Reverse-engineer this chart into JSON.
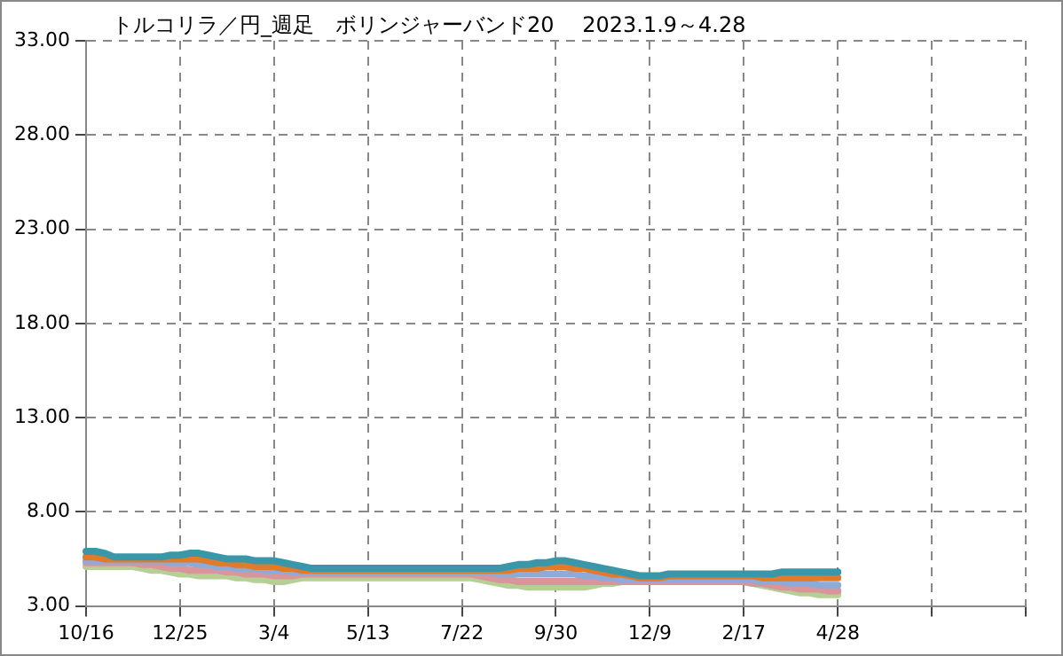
{
  "chart_data": {
    "type": "line",
    "title": "トルコリラ／円_週足　ボリンジャーバンド20　 2023.1.9～4.28",
    "categories": [
      "10/16",
      null,
      null,
      null,
      null,
      null,
      null,
      null,
      null,
      null,
      "12/25",
      null,
      null,
      null,
      null,
      null,
      null,
      null,
      null,
      null,
      "3/4",
      null,
      null,
      null,
      null,
      null,
      null,
      null,
      null,
      null,
      "5/13",
      null,
      null,
      null,
      null,
      null,
      null,
      null,
      null,
      null,
      "7/22",
      null,
      null,
      null,
      null,
      null,
      null,
      null,
      null,
      null,
      "9/30",
      null,
      null,
      null,
      null,
      null,
      null,
      null,
      null,
      null,
      "12/9",
      null,
      null,
      null,
      null,
      null,
      null,
      null,
      null,
      null,
      "2/17",
      null,
      null,
      null,
      null,
      null,
      null,
      null,
      null,
      null,
      "4/28",
      null,
      null,
      null,
      null,
      null,
      null,
      null,
      null,
      null,
      null,
      null,
      null,
      null,
      null,
      null,
      null,
      null,
      null,
      null,
      null
    ],
    "series": [
      {
        "color": "#3a97a9",
        "values": [
          5.9,
          5.9,
          5.8,
          5.6,
          5.6,
          5.6,
          5.6,
          5.6,
          5.6,
          5.7,
          5.7,
          5.8,
          5.8,
          5.7,
          5.6,
          5.5,
          5.5,
          5.5,
          5.4,
          5.4,
          5.4,
          5.3,
          5.2,
          5.1,
          5.0,
          5.0,
          5.0,
          5.0,
          5.0,
          5.0,
          5.0,
          5.0,
          5.0,
          5.0,
          5.0,
          5.0,
          5.0,
          5.0,
          5.0,
          5.0,
          5.0,
          5.0,
          5.0,
          5.0,
          5.0,
          5.1,
          5.2,
          5.2,
          5.3,
          5.3,
          5.4,
          5.4,
          5.3,
          5.2,
          5.1,
          5.0,
          4.9,
          4.8,
          4.7,
          4.6,
          4.6,
          4.6,
          4.7,
          4.7,
          4.7,
          4.7,
          4.7,
          4.7,
          4.7,
          4.7,
          4.7,
          4.7,
          4.7,
          4.7,
          4.8,
          4.8,
          4.8,
          4.8,
          4.8,
          4.8,
          4.8,
          null,
          null,
          null,
          null,
          null,
          null,
          null,
          null,
          null,
          null,
          null,
          null,
          null,
          null,
          null,
          null,
          null,
          null,
          null,
          null
        ]
      },
      {
        "color": "#e07b2a",
        "values": [
          5.6,
          5.6,
          5.5,
          5.5,
          5.5,
          5.5,
          5.5,
          5.5,
          5.5,
          5.5,
          5.5,
          5.5,
          5.5,
          5.4,
          5.3,
          5.3,
          5.2,
          5.2,
          5.1,
          5.1,
          5.1,
          5.0,
          5.0,
          4.9,
          4.9,
          4.9,
          4.9,
          4.9,
          4.9,
          4.9,
          4.9,
          4.9,
          4.9,
          4.9,
          4.9,
          4.9,
          4.9,
          4.9,
          4.9,
          4.9,
          4.9,
          4.9,
          4.9,
          4.9,
          4.9,
          4.9,
          5.0,
          5.0,
          5.0,
          5.1,
          5.1,
          5.1,
          5.0,
          5.0,
          4.9,
          4.8,
          4.7,
          4.7,
          4.6,
          4.5,
          4.5,
          4.5,
          4.6,
          4.6,
          4.6,
          4.6,
          4.6,
          4.6,
          4.6,
          4.6,
          4.6,
          4.6,
          4.5,
          4.5,
          4.5,
          4.5,
          4.5,
          4.5,
          4.5,
          4.5,
          4.5,
          null,
          null,
          null,
          null,
          null,
          null,
          null,
          null,
          null,
          null,
          null,
          null,
          null,
          null,
          null,
          null,
          null,
          null,
          null,
          null
        ]
      },
      {
        "color": "#8eaad8",
        "values": [
          5.4,
          5.4,
          5.4,
          5.4,
          5.4,
          5.4,
          5.4,
          5.4,
          5.4,
          5.3,
          5.3,
          5.3,
          5.2,
          5.2,
          5.1,
          5.1,
          5.0,
          5.0,
          5.0,
          4.9,
          4.9,
          4.9,
          4.8,
          4.8,
          4.8,
          4.8,
          4.8,
          4.8,
          4.8,
          4.8,
          4.8,
          4.8,
          4.8,
          4.8,
          4.8,
          4.8,
          4.8,
          4.8,
          4.8,
          4.8,
          4.8,
          4.8,
          4.8,
          4.8,
          4.7,
          4.7,
          4.7,
          4.7,
          4.7,
          4.7,
          4.7,
          4.7,
          4.7,
          4.6,
          4.6,
          4.5,
          4.5,
          4.4,
          4.4,
          4.4,
          4.4,
          4.4,
          4.4,
          4.4,
          4.4,
          4.4,
          4.4,
          4.4,
          4.4,
          4.4,
          4.4,
          4.4,
          4.3,
          4.3,
          4.3,
          4.2,
          4.2,
          4.2,
          4.1,
          4.1,
          4.1,
          null,
          null,
          null,
          null,
          null,
          null,
          null,
          null,
          null,
          null,
          null,
          null,
          null,
          null,
          null,
          null,
          null,
          null,
          null,
          null
        ]
      },
      {
        "color": "#d9959a",
        "values": [
          5.3,
          5.3,
          5.3,
          5.3,
          5.3,
          5.3,
          5.2,
          5.2,
          5.1,
          5.0,
          5.0,
          4.9,
          4.9,
          4.9,
          4.9,
          4.8,
          4.8,
          4.7,
          4.7,
          4.7,
          4.6,
          4.6,
          4.6,
          4.7,
          4.7,
          4.7,
          4.7,
          4.7,
          4.7,
          4.7,
          4.7,
          4.7,
          4.7,
          4.7,
          4.7,
          4.7,
          4.7,
          4.7,
          4.7,
          4.7,
          4.7,
          4.7,
          4.6,
          4.5,
          4.4,
          4.4,
          4.3,
          4.3,
          4.3,
          4.3,
          4.3,
          4.3,
          4.3,
          4.3,
          4.3,
          4.3,
          4.3,
          4.3,
          4.3,
          4.3,
          4.3,
          4.3,
          4.3,
          4.3,
          4.3,
          4.3,
          4.3,
          4.3,
          4.3,
          4.3,
          4.3,
          4.2,
          4.2,
          4.1,
          4.0,
          4.0,
          3.9,
          3.9,
          3.9,
          3.8,
          3.8,
          null,
          null,
          null,
          null,
          null,
          null,
          null,
          null,
          null,
          null,
          null,
          null,
          null,
          null,
          null,
          null,
          null,
          null,
          null,
          null
        ]
      },
      {
        "color": "#b5cf95",
        "values": [
          5.1,
          5.1,
          5.1,
          5.1,
          5.1,
          5.1,
          5.0,
          4.9,
          4.9,
          4.8,
          4.7,
          4.7,
          4.6,
          4.6,
          4.6,
          4.6,
          4.5,
          4.5,
          4.4,
          4.4,
          4.3,
          4.3,
          4.4,
          4.5,
          4.5,
          4.5,
          4.5,
          4.5,
          4.5,
          4.5,
          4.5,
          4.5,
          4.5,
          4.5,
          4.5,
          4.5,
          4.5,
          4.5,
          4.5,
          4.5,
          4.5,
          4.5,
          4.4,
          4.3,
          4.2,
          4.1,
          4.1,
          4.0,
          4.0,
          4.0,
          4.0,
          4.0,
          4.0,
          4.0,
          4.1,
          4.2,
          4.2,
          4.3,
          4.3,
          4.3,
          4.3,
          4.3,
          4.3,
          4.3,
          4.4,
          4.4,
          4.4,
          4.4,
          4.4,
          4.4,
          4.3,
          4.2,
          4.1,
          4.0,
          3.9,
          3.8,
          3.7,
          3.7,
          3.6,
          3.6,
          3.6,
          null,
          null,
          null,
          null,
          null,
          null,
          null,
          null,
          null,
          null,
          null,
          null,
          null,
          null,
          null,
          null,
          null,
          null,
          null,
          null
        ]
      }
    ],
    "ylim": [
      3,
      33
    ],
    "yticks": [
      {
        "value": 3,
        "label": "3.00"
      },
      {
        "value": 8,
        "label": "8.00"
      },
      {
        "value": 13,
        "label": "13.00"
      },
      {
        "value": 18,
        "label": "18.00"
      },
      {
        "value": 23,
        "label": "23.00"
      },
      {
        "value": 28,
        "label": "28.00"
      },
      {
        "value": 33,
        "label": "33.00"
      }
    ],
    "grid": true,
    "line_style": "solid",
    "marker": "none",
    "legend": false
  }
}
